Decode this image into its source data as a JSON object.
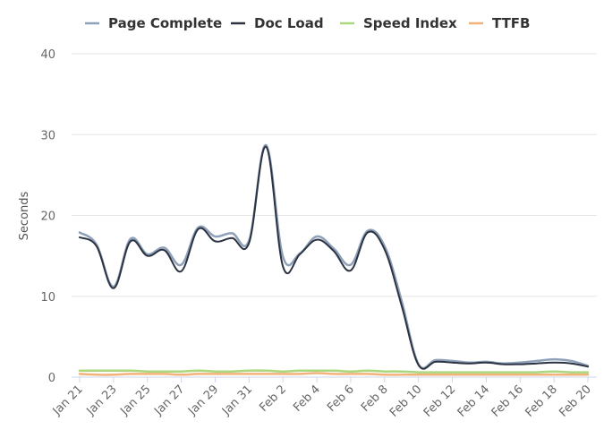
{
  "chart_data": {
    "type": "line",
    "ylabel": "Seconds",
    "ylim": [
      0,
      40
    ],
    "yticks": [
      "0",
      "10",
      "20",
      "30",
      "40"
    ],
    "xlabels": [
      "Jan 21",
      "Jan 23",
      "Jan 25",
      "Jan 27",
      "Jan 29",
      "Jan 31",
      "Feb 2",
      "Feb 4",
      "Feb 6",
      "Feb 8",
      "Feb 10",
      "Feb 12",
      "Feb 14",
      "Feb 16",
      "Feb 18",
      "Feb 20"
    ],
    "x": [
      "Jan 21",
      "Jan 22",
      "Jan 23",
      "Jan 24",
      "Jan 25",
      "Jan 26",
      "Jan 27",
      "Jan 28",
      "Jan 29",
      "Jan 30",
      "Jan 31",
      "Feb 1",
      "Feb 2",
      "Feb 3",
      "Feb 4",
      "Feb 5",
      "Feb 6",
      "Feb 7",
      "Feb 8",
      "Feb 9",
      "Feb 10",
      "Feb 11",
      "Feb 12",
      "Feb 13",
      "Feb 14",
      "Feb 15",
      "Feb 16",
      "Feb 17",
      "Feb 18",
      "Feb 19",
      "Feb 20"
    ],
    "grid": true,
    "legend_position": "top",
    "series": [
      {
        "name": "Page Complete",
        "color": "#8fa0b9",
        "values": [
          17.9,
          16.4,
          11.2,
          17.1,
          15.2,
          16.0,
          13.9,
          18.5,
          17.4,
          17.8,
          16.9,
          28.7,
          14.9,
          15.3,
          17.4,
          15.9,
          13.9,
          18.1,
          16.2,
          9.5,
          1.6,
          2.1,
          2.0,
          1.8,
          1.9,
          1.7,
          1.8,
          2.0,
          2.2,
          2.0,
          1.4
        ]
      },
      {
        "name": "Doc Load",
        "color": "#2b3342",
        "values": [
          17.3,
          16.2,
          11.0,
          16.8,
          15.0,
          15.7,
          13.1,
          18.3,
          16.8,
          17.2,
          16.6,
          28.5,
          13.7,
          15.2,
          17.0,
          15.6,
          13.2,
          17.9,
          15.8,
          8.9,
          1.5,
          1.9,
          1.8,
          1.7,
          1.8,
          1.6,
          1.6,
          1.7,
          1.8,
          1.7,
          1.3
        ]
      },
      {
        "name": "Speed Index",
        "color": "#a9d87e",
        "values": [
          0.8,
          0.8,
          0.8,
          0.8,
          0.7,
          0.7,
          0.7,
          0.8,
          0.7,
          0.7,
          0.8,
          0.8,
          0.7,
          0.8,
          0.8,
          0.8,
          0.7,
          0.8,
          0.7,
          0.7,
          0.6,
          0.6,
          0.6,
          0.6,
          0.6,
          0.6,
          0.6,
          0.6,
          0.7,
          0.6,
          0.6
        ]
      },
      {
        "name": "TTFB",
        "color": "#f2b27a",
        "values": [
          0.4,
          0.3,
          0.3,
          0.4,
          0.4,
          0.4,
          0.3,
          0.4,
          0.4,
          0.4,
          0.4,
          0.4,
          0.4,
          0.4,
          0.5,
          0.4,
          0.4,
          0.4,
          0.3,
          0.3,
          0.3,
          0.3,
          0.3,
          0.3,
          0.3,
          0.3,
          0.3,
          0.3,
          0.3,
          0.3,
          0.3
        ]
      }
    ]
  }
}
